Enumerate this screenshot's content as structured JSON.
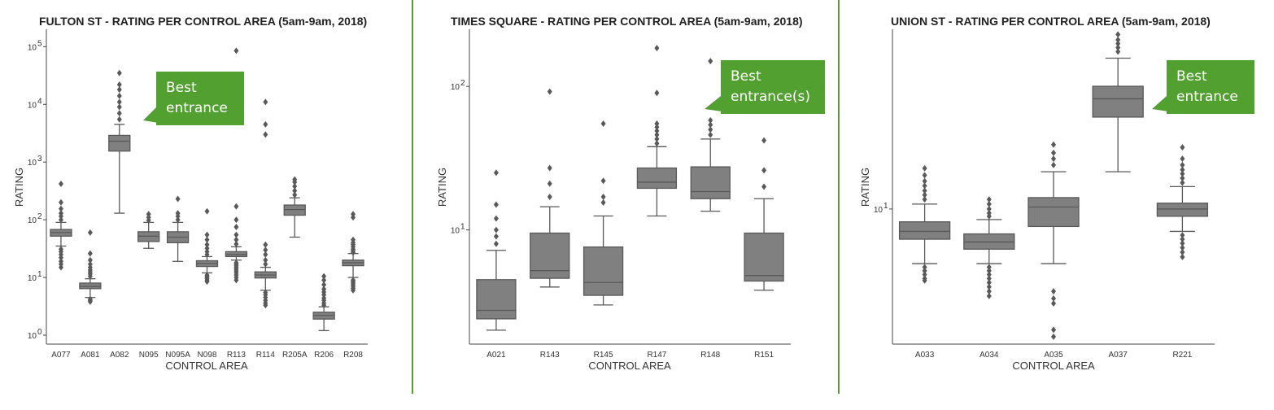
{
  "colors": {
    "box": "#808080",
    "line": "#595959",
    "accent": "#52a030",
    "axis": "#444444"
  },
  "chart_data": [
    {
      "type": "box",
      "title": "FULTON ST - RATING PER CONTROL AREA (5am-9am, 2018)",
      "xlabel": "CONTROL AREA",
      "ylabel": "RATING",
      "yscale": "log",
      "ylim": [
        0.7,
        200000
      ],
      "yticks": [
        {
          "value": 1,
          "base": "10",
          "exp": "0"
        },
        {
          "value": 10,
          "base": "10",
          "exp": "1"
        },
        {
          "value": 100,
          "base": "10",
          "exp": "2"
        },
        {
          "value": 1000,
          "base": "10",
          "exp": "3"
        },
        {
          "value": 10000,
          "base": "10",
          "exp": "4"
        },
        {
          "value": 100000,
          "base": "10",
          "exp": "5"
        }
      ],
      "callout": {
        "lines": [
          "Best",
          "entrance"
        ],
        "target": "A082"
      },
      "boxes": [
        {
          "category": "A077",
          "whisker_low": 35,
          "q1": 52,
          "median": 60,
          "q3": 68,
          "whisker_high": 90,
          "outliers": [
            15,
            17,
            19,
            22,
            25,
            28,
            31,
            100,
            115,
            130,
            155,
            200,
            420
          ]
        },
        {
          "category": "A081",
          "whisker_low": 4.5,
          "q1": 6.4,
          "median": 7.0,
          "q3": 8.0,
          "whisker_high": 9.5,
          "outliers": [
            3.8,
            4.0,
            4.2,
            10.5,
            11.5,
            12.5,
            13.5,
            15,
            17,
            20,
            26,
            60
          ]
        },
        {
          "category": "A082",
          "whisker_low": 130,
          "q1": 1550,
          "median": 2300,
          "q3": 2900,
          "whisker_high": 4500,
          "outliers": [
            5500,
            7000,
            9000,
            11000,
            14000,
            18000,
            22000,
            35000
          ]
        },
        {
          "category": "N095",
          "whisker_low": 32,
          "q1": 42,
          "median": 52,
          "q3": 62,
          "whisker_high": 90,
          "outliers": [
            98,
            110,
            125
          ]
        },
        {
          "category": "N095A",
          "whisker_low": 19,
          "q1": 40,
          "median": 50,
          "q3": 62,
          "whisker_high": 90,
          "outliers": [
            100,
            115,
            130,
            230
          ]
        },
        {
          "category": "N098",
          "whisker_low": 12,
          "q1": 15.5,
          "median": 17.5,
          "q3": 19.5,
          "whisker_high": 23,
          "outliers": [
            8.5,
            9,
            9.5,
            10,
            10.5,
            11,
            25,
            28,
            32,
            37,
            45,
            55,
            140
          ]
        },
        {
          "category": "R113",
          "whisker_low": 20,
          "q1": 23,
          "median": 25,
          "q3": 28,
          "whisker_high": 34,
          "outliers": [
            9,
            10,
            11,
            12,
            13,
            14,
            15,
            16,
            17,
            18,
            38,
            45,
            55,
            75,
            100,
            170,
            85000
          ]
        },
        {
          "category": "R114",
          "whisker_low": 6,
          "q1": 9.8,
          "median": 11,
          "q3": 12.5,
          "whisker_high": 15,
          "outliers": [
            3.3,
            3.6,
            4,
            4.5,
            5,
            5.5,
            17,
            20,
            25,
            30,
            37,
            3000,
            4500,
            11000
          ]
        },
        {
          "category": "R205A",
          "whisker_low": 50,
          "q1": 120,
          "median": 150,
          "q3": 180,
          "whisker_high": 240,
          "outliers": [
            270,
            320,
            380,
            450,
            500
          ]
        },
        {
          "category": "R206",
          "whisker_low": 1.2,
          "q1": 1.9,
          "median": 2.2,
          "q3": 2.5,
          "whisker_high": 3.1,
          "outliers": [
            3.3,
            3.6,
            4,
            4.4,
            5,
            5.6,
            6.3,
            7.5,
            9,
            10.5
          ]
        },
        {
          "category": "R208",
          "whisker_low": 10,
          "q1": 16,
          "median": 18,
          "q3": 20,
          "whisker_high": 26,
          "outliers": [
            6,
            6.5,
            7,
            7.5,
            8,
            8.5,
            9,
            27,
            29,
            31,
            34,
            37,
            40,
            45,
            110,
            125
          ]
        }
      ]
    },
    {
      "type": "box",
      "title": "TIMES SQUARE - RATING PER CONTROL AREA (5am-9am, 2018)",
      "xlabel": "CONTROL AREA",
      "ylabel": "RATING",
      "yscale": "log",
      "ylim": [
        1.6,
        250
      ],
      "yticks": [
        {
          "value": 10,
          "base": "10",
          "exp": "1"
        },
        {
          "value": 100,
          "base": "10",
          "exp": "2"
        }
      ],
      "callout": {
        "lines": [
          "Best",
          "entrance(s)"
        ],
        "target": "R147"
      },
      "boxes": [
        {
          "category": "A021",
          "whisker_low": 2.0,
          "q1": 2.4,
          "median": 2.75,
          "q3": 4.5,
          "whisker_high": 7.2,
          "outliers": [
            8,
            9,
            10,
            12,
            15,
            25
          ]
        },
        {
          "category": "R143",
          "whisker_low": 4.0,
          "q1": 4.6,
          "median": 5.2,
          "q3": 9.5,
          "whisker_high": 14.5,
          "outliers": [
            17,
            21,
            27,
            92
          ]
        },
        {
          "category": "R145",
          "whisker_low": 3.0,
          "q1": 3.5,
          "median": 4.3,
          "q3": 7.6,
          "whisker_high": 12.5,
          "outliers": [
            15.5,
            17,
            22,
            55
          ]
        },
        {
          "category": "R147",
          "whisker_low": 12.5,
          "q1": 19.5,
          "median": 21.5,
          "q3": 27,
          "whisker_high": 38,
          "outliers": [
            40,
            43,
            46,
            49,
            52,
            55,
            90,
            185
          ]
        },
        {
          "category": "R148",
          "whisker_low": 13.5,
          "q1": 16.5,
          "median": 18.5,
          "q3": 27.5,
          "whisker_high": 43,
          "outliers": [
            46,
            50,
            54,
            58,
            150
          ]
        },
        {
          "category": "R151",
          "whisker_low": 3.8,
          "q1": 4.4,
          "median": 4.8,
          "q3": 9.5,
          "whisker_high": 16.5,
          "outliers": [
            20,
            26,
            42
          ]
        }
      ]
    },
    {
      "type": "box",
      "title": "UNION ST - RATING PER CONTROL AREA (5am-9am, 2018)",
      "xlabel": "CONTROL AREA",
      "ylabel": "RATING",
      "yscale": "log",
      "ylim": [
        2.6,
        60
      ],
      "yticks": [
        {
          "value": 10,
          "base": "10",
          "exp": "1"
        }
      ],
      "callout": {
        "lines": [
          "Best",
          "entrance"
        ],
        "target": "A037"
      },
      "boxes": [
        {
          "category": "A033",
          "whisker_low": 5.8,
          "q1": 7.4,
          "median": 8.0,
          "q3": 8.8,
          "whisker_high": 10.5,
          "outliers": [
            4.9,
            5.0,
            5.2,
            5.4,
            5.6,
            11,
            11.5,
            12,
            12.6,
            13.2,
            14,
            15
          ]
        },
        {
          "category": "A034",
          "whisker_low": 5.8,
          "q1": 6.7,
          "median": 7.2,
          "q3": 7.8,
          "whisker_high": 9.0,
          "outliers": [
            4.2,
            4.4,
            4.6,
            4.8,
            5.0,
            5.2,
            5.4,
            5.6,
            9.3,
            9.6,
            10,
            10.5,
            11
          ]
        },
        {
          "category": "A035",
          "whisker_low": 5.8,
          "q1": 8.4,
          "median": 10.2,
          "q3": 11.2,
          "whisker_high": 14.5,
          "outliers": [
            2.8,
            3.0,
            3.9,
            4.1,
            4.4,
            15.5,
            16.5,
            17.5,
            19
          ]
        },
        {
          "category": "A037",
          "whisker_low": 14.5,
          "q1": 25,
          "median": 30,
          "q3": 34,
          "whisker_high": 45,
          "outliers": [
            48,
            50,
            52,
            54,
            57
          ]
        },
        {
          "category": "R221",
          "whisker_low": 8.0,
          "q1": 9.3,
          "median": 10,
          "q3": 10.6,
          "whisker_high": 12.5,
          "outliers": [
            6.2,
            6.5,
            6.8,
            7.1,
            7.4,
            7.7,
            13,
            13.6,
            14.2,
            14.8,
            15.5,
            16.5,
            18.5
          ]
        }
      ]
    }
  ]
}
